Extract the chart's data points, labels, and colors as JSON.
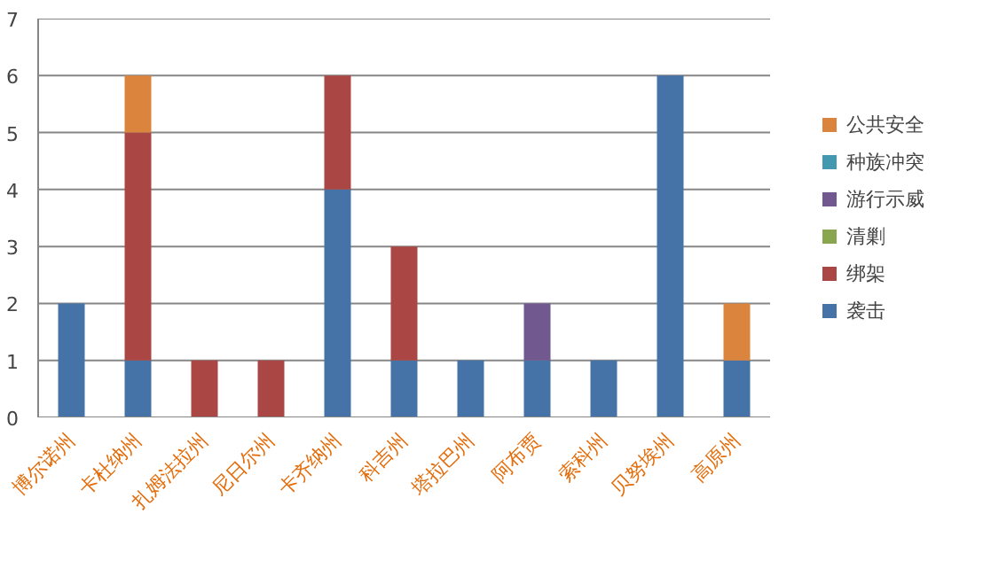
{
  "chart_data": {
    "type": "bar",
    "stacked": true,
    "categories": [
      "博尔诺州",
      "卡杜纳州",
      "扎姆法拉州",
      "尼日尔州",
      "卡齐纳州",
      "科吉州",
      "塔拉巴州",
      "阿布贾",
      "索科州",
      "贝努埃州",
      "高原州"
    ],
    "series": [
      {
        "name": "袭击",
        "color": "#4572a7",
        "values": [
          2,
          1,
          0,
          0,
          4,
          1,
          1,
          1,
          1,
          6,
          1
        ]
      },
      {
        "name": "绑架",
        "color": "#aa4643",
        "values": [
          0,
          4,
          1,
          1,
          2,
          2,
          0,
          0,
          0,
          0,
          0
        ]
      },
      {
        "name": "清剿",
        "color": "#89a54e",
        "values": [
          0,
          0,
          0,
          0,
          0,
          0,
          0,
          0,
          0,
          0,
          0
        ]
      },
      {
        "name": "游行示威",
        "color": "#71588f",
        "values": [
          0,
          0,
          0,
          0,
          0,
          0,
          0,
          1,
          0,
          0,
          0
        ]
      },
      {
        "name": "种族冲突",
        "color": "#4198af",
        "values": [
          0,
          0,
          0,
          0,
          0,
          0,
          0,
          0,
          0,
          0,
          0
        ]
      },
      {
        "name": "公共安全",
        "color": "#db843d",
        "values": [
          0,
          1,
          0,
          0,
          0,
          0,
          0,
          0,
          0,
          0,
          1
        ]
      }
    ],
    "ylim": [
      0,
      7
    ],
    "yticks": [
      0,
      1,
      2,
      3,
      4,
      5,
      6,
      7
    ],
    "grid": "y",
    "legend": "right"
  }
}
